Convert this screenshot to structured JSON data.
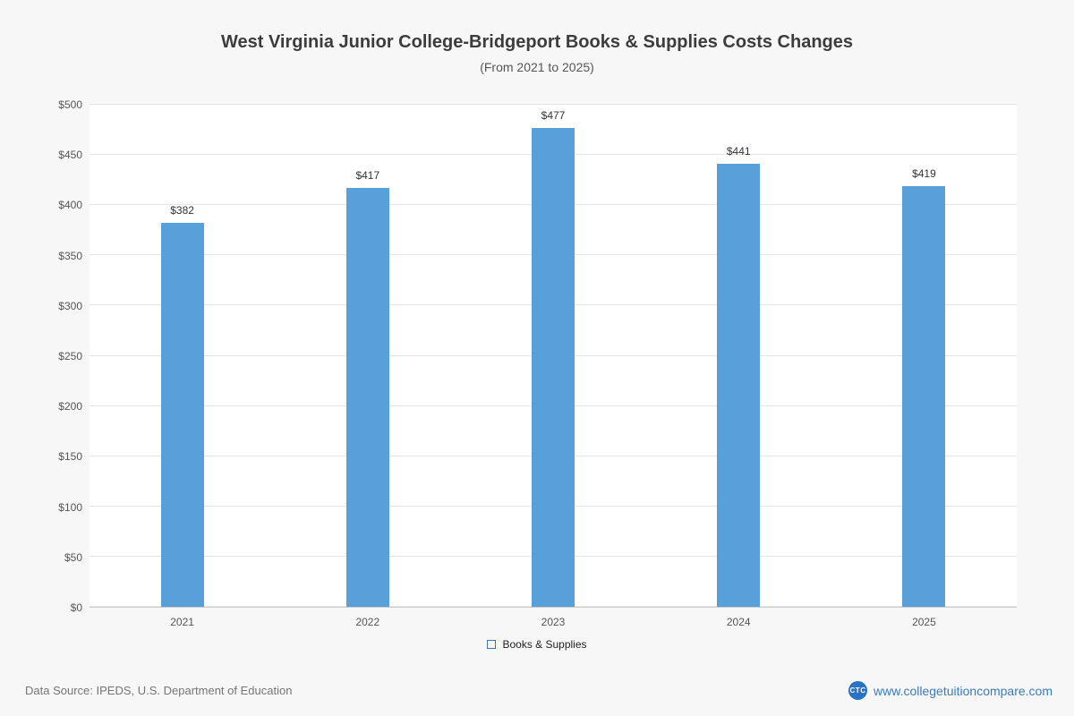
{
  "chart_data": {
    "type": "bar",
    "title": "West Virginia Junior College-Bridgeport Books & Supplies Costs Changes",
    "subtitle": "(From 2021 to 2025)",
    "categories": [
      "2021",
      "2022",
      "2023",
      "2024",
      "2025"
    ],
    "series": [
      {
        "name": "Books & Supplies",
        "values": [
          382,
          417,
          477,
          441,
          419
        ]
      }
    ],
    "value_labels": [
      "$382",
      "$417",
      "$477",
      "$441",
      "$419"
    ],
    "ylim": [
      0,
      500
    ],
    "ytick_step": 50,
    "ytick_labels": [
      "$0",
      "$50",
      "$100",
      "$150",
      "$200",
      "$250",
      "$300",
      "$350",
      "$400",
      "$450",
      "$500"
    ],
    "grid": true,
    "legend_position": "bottom",
    "bar_color": "#58a0da"
  },
  "footer": {
    "source": "Data Source: IPEDS, U.S. Department of Education",
    "website": "www.collegetuitioncompare.com",
    "logo_text": "CTC"
  }
}
